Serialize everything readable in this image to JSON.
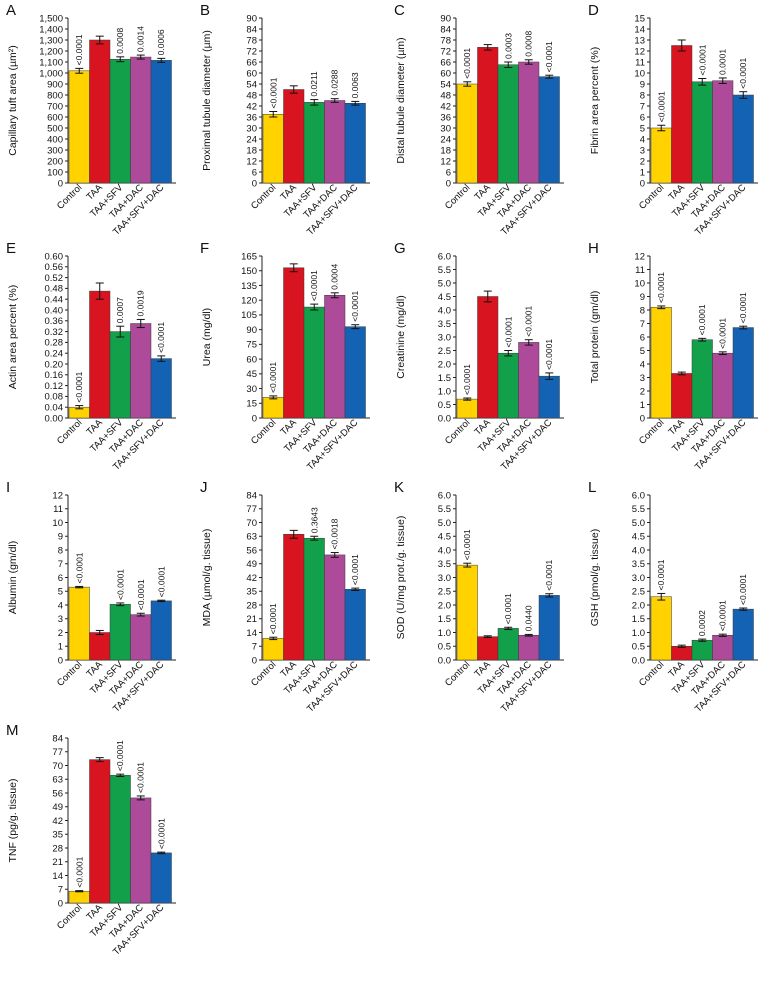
{
  "figure": {
    "categories": [
      "Control",
      "TAA",
      "TAA+SFV",
      "TAA+DAC",
      "TAA+SFV+DAC"
    ],
    "colors": [
      "#FFD200",
      "#D7141F",
      "#12A04A",
      "#AE4A9A",
      "#1462B4"
    ]
  },
  "chart_data": [
    {
      "type": "bar",
      "panel": "A",
      "ylabel": "Capillary tuft area (µm²)",
      "ylim": [
        0,
        1500
      ],
      "ytick_step": 100,
      "values": [
        1020,
        1300,
        1125,
        1145,
        1115
      ],
      "errors": [
        22,
        35,
        22,
        18,
        18
      ],
      "annotations": [
        "<0.0001",
        "",
        "0.0008",
        "0.0014",
        "0.0006"
      ]
    },
    {
      "type": "bar",
      "panel": "B",
      "ylabel": "Proximal tubule diameter (µm)",
      "ylim": [
        0,
        90
      ],
      "ytick_step": 6,
      "values": [
        37.5,
        51,
        44,
        45,
        43.5
      ],
      "errors": [
        1.5,
        2,
        1.5,
        1,
        1
      ],
      "annotations": [
        "<0.0001",
        "",
        "0.0211",
        "0.0288",
        "0.0063"
      ]
    },
    {
      "type": "bar",
      "panel": "C",
      "ylabel": "Distal tubule diameter (µm)",
      "ylim": [
        0,
        90
      ],
      "ytick_step": 6,
      "values": [
        54,
        74,
        64.5,
        66,
        58
      ],
      "errors": [
        1.2,
        1.5,
        1.5,
        1.2,
        0.8
      ],
      "annotations": [
        "<0.0001",
        "",
        "0.0003",
        "0.0008",
        "<0.0001"
      ]
    },
    {
      "type": "bar",
      "panel": "D",
      "ylabel": "Fibrin area percent (%)",
      "ylim": [
        0,
        15
      ],
      "ytick_step": 1,
      "values": [
        5,
        12.5,
        9.2,
        9.3,
        8
      ],
      "errors": [
        0.25,
        0.5,
        0.3,
        0.25,
        0.3
      ],
      "annotations": [
        "<0.0001",
        "",
        "<0.0001",
        "0.0001",
        "<0.0001"
      ]
    },
    {
      "type": "bar",
      "panel": "E",
      "ylabel": "Actin area percent (%)",
      "ylim": [
        0,
        0.6
      ],
      "ytick_step": 0.04,
      "tick_decimals": 2,
      "values": [
        0.04,
        0.47,
        0.32,
        0.35,
        0.22
      ],
      "errors": [
        0.006,
        0.03,
        0.02,
        0.015,
        0.01
      ],
      "annotations": [
        "<0.0001",
        "",
        "0.0007",
        "0.0019",
        "<0.0001"
      ]
    },
    {
      "type": "bar",
      "panel": "F",
      "ylabel": "Urea (mg/dl)",
      "ylim": [
        0,
        165
      ],
      "ytick_step": 15,
      "values": [
        21,
        153,
        113,
        125,
        93
      ],
      "errors": [
        1.5,
        4,
        3,
        2.5,
        2
      ],
      "annotations": [
        "<0.0001",
        "",
        "<0.0001",
        "0.0004",
        "<0.0001"
      ]
    },
    {
      "type": "bar",
      "panel": "G",
      "ylabel": "Creatinine (mg/dl)",
      "ylim": [
        0,
        6
      ],
      "ytick_step": 0.5,
      "tick_decimals": 1,
      "values": [
        0.7,
        4.5,
        2.4,
        2.8,
        1.55
      ],
      "errors": [
        0.04,
        0.2,
        0.1,
        0.1,
        0.12
      ],
      "annotations": [
        "<0.0001",
        "",
        "<0.0001",
        "<0.0001",
        "<0.0001"
      ]
    },
    {
      "type": "bar",
      "panel": "H",
      "ylabel": "Total protein (gm/dl)",
      "ylim": [
        0,
        12
      ],
      "ytick_step": 1,
      "values": [
        8.2,
        3.3,
        5.8,
        4.8,
        6.7
      ],
      "errors": [
        0.1,
        0.1,
        0.1,
        0.1,
        0.1
      ],
      "annotations": [
        "<0.0001",
        "",
        "<0.0001",
        "<0.0001",
        "<0.0001"
      ]
    },
    {
      "type": "bar",
      "panel": "I",
      "ylabel": "Albumin (gm/dl)",
      "ylim": [
        0,
        12
      ],
      "ytick_step": 1,
      "values": [
        5.3,
        2.0,
        4.05,
        3.3,
        4.3
      ],
      "errors": [
        0.05,
        0.15,
        0.1,
        0.1,
        0.05
      ],
      "annotations": [
        "<0.0001",
        "",
        "<0.0001",
        "<0.0001",
        "<0.0001"
      ]
    },
    {
      "type": "bar",
      "panel": "J",
      "ylabel": "MDA (µmol/g. tissue)",
      "ylim": [
        0,
        84
      ],
      "ytick_step": 7,
      "values": [
        11,
        64,
        62,
        53.5,
        36
      ],
      "errors": [
        0.6,
        2,
        1,
        1.2,
        0.6
      ],
      "annotations": [
        "<0.0001",
        "",
        "0.3643",
        "<0.0018",
        "<0.0001"
      ]
    },
    {
      "type": "bar",
      "panel": "K",
      "ylabel": "SOD (U/mg prot./g. tissue)",
      "ylim": [
        0,
        6
      ],
      "ytick_step": 0.5,
      "tick_decimals": 1,
      "values": [
        3.45,
        0.85,
        1.15,
        0.9,
        2.35
      ],
      "errors": [
        0.07,
        0.03,
        0.04,
        0.03,
        0.06
      ],
      "annotations": [
        "<0.0001",
        "",
        "<0.0001",
        "0.0440",
        "<0.0001"
      ]
    },
    {
      "type": "bar",
      "panel": "L",
      "ylabel": "GSH (pmol/g. tissue)",
      "ylim": [
        0,
        6
      ],
      "ytick_step": 0.5,
      "tick_decimals": 1,
      "values": [
        2.3,
        0.5,
        0.72,
        0.9,
        1.85
      ],
      "errors": [
        0.12,
        0.04,
        0.04,
        0.04,
        0.04
      ],
      "annotations": [
        "<0.0001",
        "",
        "0.0002",
        "<0.0001",
        "<0.0001"
      ]
    },
    {
      "type": "bar",
      "panel": "M",
      "ylabel": "TNF (pg/g. tissue)",
      "ylim": [
        0,
        84
      ],
      "ytick_step": 7,
      "values": [
        6,
        73,
        65,
        53.5,
        25.5
      ],
      "errors": [
        0.3,
        1,
        0.6,
        1,
        0.4
      ],
      "annotations": [
        "<0.0001",
        "",
        "<0.0001",
        "<0.0001",
        "<0.0001"
      ]
    }
  ]
}
